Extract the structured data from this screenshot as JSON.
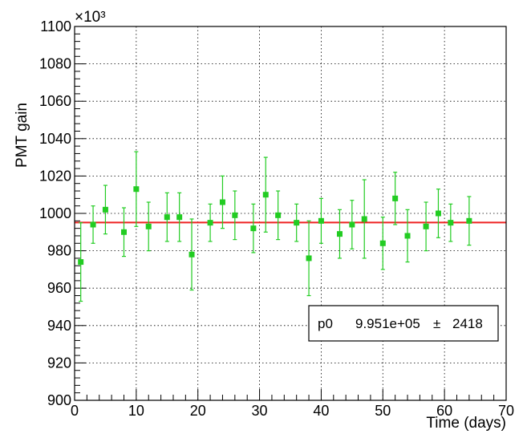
{
  "chart_data": {
    "type": "scatter",
    "xlabel": "Time (days)",
    "ylabel": "PMT gain",
    "y_multiplier": "×10³",
    "xlim": [
      0,
      70
    ],
    "ylim": [
      900,
      1100
    ],
    "x_ticks": [
      0,
      10,
      20,
      30,
      40,
      50,
      60,
      70
    ],
    "y_ticks": [
      900,
      920,
      940,
      960,
      980,
      1000,
      1020,
      1040,
      1060,
      1080,
      1100
    ],
    "grid": true,
    "marker_color": "#22cc22",
    "fit_color": "#ee2222",
    "points": [
      {
        "x": 1,
        "y": 974,
        "err": 21
      },
      {
        "x": 3,
        "y": 994,
        "err": 10
      },
      {
        "x": 5,
        "y": 1002,
        "err": 13
      },
      {
        "x": 8,
        "y": 990,
        "err": 13
      },
      {
        "x": 10,
        "y": 1013,
        "err": 20
      },
      {
        "x": 12,
        "y": 993,
        "err": 13
      },
      {
        "x": 15,
        "y": 998,
        "err": 13
      },
      {
        "x": 17,
        "y": 998,
        "err": 13
      },
      {
        "x": 19,
        "y": 978,
        "err": 19
      },
      {
        "x": 22,
        "y": 995,
        "err": 10
      },
      {
        "x": 24,
        "y": 1006,
        "err": 14
      },
      {
        "x": 26,
        "y": 999,
        "err": 13
      },
      {
        "x": 29,
        "y": 992,
        "err": 13
      },
      {
        "x": 31,
        "y": 1010,
        "err": 20
      },
      {
        "x": 33,
        "y": 999,
        "err": 13
      },
      {
        "x": 36,
        "y": 995,
        "err": 10
      },
      {
        "x": 38,
        "y": 976,
        "err": 20
      },
      {
        "x": 40,
        "y": 996,
        "err": 12
      },
      {
        "x": 43,
        "y": 989,
        "err": 13
      },
      {
        "x": 45,
        "y": 994,
        "err": 13
      },
      {
        "x": 47,
        "y": 997,
        "err": 21
      },
      {
        "x": 50,
        "y": 984,
        "err": 14
      },
      {
        "x": 52,
        "y": 1008,
        "err": 14
      },
      {
        "x": 54,
        "y": 988,
        "err": 14
      },
      {
        "x": 57,
        "y": 993,
        "err": 13
      },
      {
        "x": 59,
        "y": 1000,
        "err": 13
      },
      {
        "x": 61,
        "y": 995,
        "err": 10
      },
      {
        "x": 64,
        "y": 996,
        "err": 13
      }
    ],
    "fit": {
      "type": "constant",
      "value": 995.1,
      "x_range": [
        0,
        70
      ]
    },
    "stats_box": {
      "param_name": "p0",
      "param_value": "9.951e+05",
      "pm": "±",
      "param_error": "2418",
      "placement": "lower-right"
    }
  }
}
